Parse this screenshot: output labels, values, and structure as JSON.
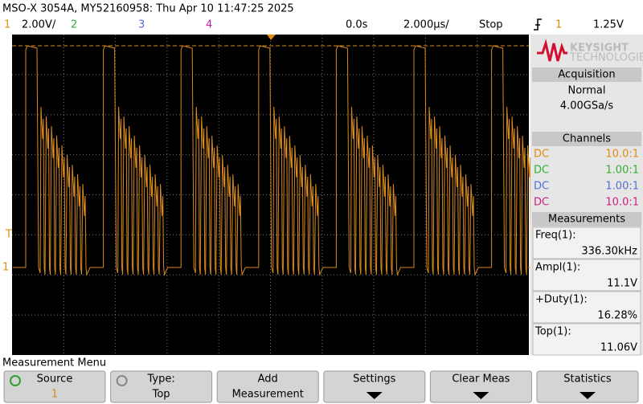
{
  "header": {
    "title": "MSO-X 3054A, MY52160958: Thu Apr 10 11:47:25 2025",
    "channels": [
      {
        "number": "1",
        "scale": "2.00V/"
      },
      {
        "number": "2"
      },
      {
        "number": "3"
      },
      {
        "number": "4"
      }
    ],
    "time_offset": "0.0s",
    "time_scale": "2.000µs/",
    "run_state": "Stop",
    "trigger_channel": "1",
    "trigger_level": "1.25V"
  },
  "side_panel": {
    "brand": "KEYSIGHT",
    "brand_sub": "TECHNOLOGIES",
    "acquisition": {
      "title": "Acquisition",
      "mode": "Normal",
      "sample_rate": "4.00GSa/s"
    },
    "channels": {
      "title": "Channels",
      "rows": [
        {
          "coupling": "DC",
          "probe": "10.0:1"
        },
        {
          "coupling": "DC",
          "probe": "1.00:1"
        },
        {
          "coupling": "DC",
          "probe": "1.00:1"
        },
        {
          "coupling": "DC",
          "probe": "10.0:1"
        }
      ]
    },
    "measurements": {
      "title": "Measurements",
      "items": [
        {
          "label": "Freq(1):",
          "value": "336.30kHz"
        },
        {
          "label": "Ampl(1):",
          "value": "11.1V"
        },
        {
          "label": "+Duty(1):",
          "value": "16.28%"
        },
        {
          "label": "Top(1):",
          "value": "11.06V"
        }
      ]
    }
  },
  "menu": {
    "title": "Measurement Menu",
    "buttons": [
      {
        "lines": [
          "Source",
          "1"
        ]
      },
      {
        "lines": [
          "Type:",
          "Top"
        ]
      },
      {
        "lines": [
          "Add",
          "Measurement"
        ]
      },
      {
        "lines": [
          "Settings"
        ]
      },
      {
        "lines": [
          "Clear Meas"
        ]
      },
      {
        "lines": [
          "Statistics"
        ]
      }
    ]
  }
}
